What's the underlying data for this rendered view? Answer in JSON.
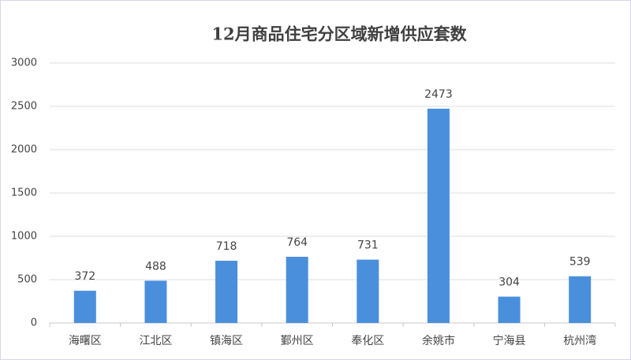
{
  "chart_data": {
    "type": "bar",
    "title": "12月商品住宅分区域新增供应套数",
    "categories": [
      "海曙区",
      "江北区",
      "镇海区",
      "鄞州区",
      "奉化区",
      "余姚市",
      "宁海县",
      "杭州湾"
    ],
    "values": [
      372,
      488,
      718,
      764,
      731,
      2473,
      304,
      539
    ],
    "color": "#4a8fdc",
    "ylim": [
      0,
      3000
    ],
    "yticks": [
      0,
      500,
      1000,
      1500,
      2000,
      2500,
      3000
    ],
    "grid": true
  }
}
